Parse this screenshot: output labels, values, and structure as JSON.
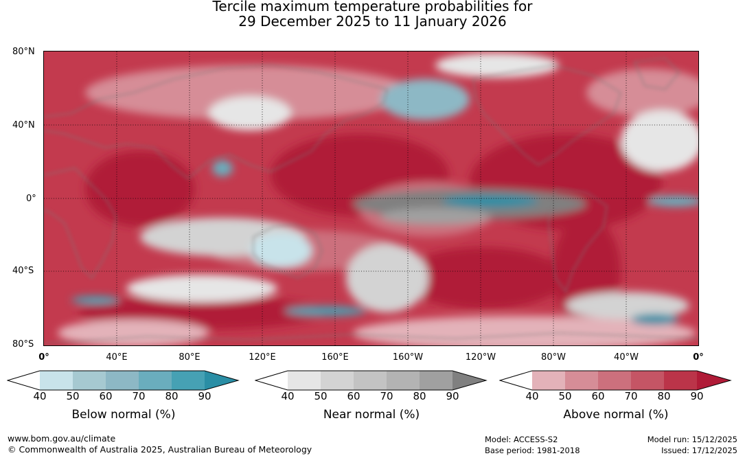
{
  "title": {
    "line1": "Tercile maximum temperature probabilities for",
    "line2": "29 December 2025 to 11 January 2026"
  },
  "map": {
    "lat_labels": [
      "80°N",
      "40°N",
      "0°",
      "40°S",
      "80°S"
    ],
    "lon_labels": [
      "0°",
      "40°E",
      "80°E",
      "120°E",
      "160°E",
      "160°W",
      "120°W",
      "80°W",
      "40°W",
      "0°"
    ],
    "lat_range": [
      -80,
      80
    ],
    "lon_range": [
      0,
      360
    ],
    "graticule_step_deg": 40
  },
  "legends": [
    {
      "name": "below",
      "title": "Below normal (%)",
      "ticks": [
        "40",
        "50",
        "60",
        "70",
        "80",
        "90"
      ],
      "colors": [
        "#ffffff",
        "#c8e3ea",
        "#a6c9d1",
        "#8db8c5",
        "#6aadbd",
        "#46a1b4",
        "#2a8ea5"
      ]
    },
    {
      "name": "near",
      "title": "Near normal (%)",
      "ticks": [
        "40",
        "50",
        "60",
        "70",
        "80",
        "90"
      ],
      "colors": [
        "#ffffff",
        "#e6e6e6",
        "#d3d3d3",
        "#c3c3c3",
        "#b3b3b3",
        "#a0a0a0",
        "#808080"
      ]
    },
    {
      "name": "above",
      "title": "Above normal (%)",
      "ticks": [
        "40",
        "50",
        "60",
        "70",
        "80",
        "90"
      ],
      "colors": [
        "#ffffff",
        "#e3b2b9",
        "#d68d97",
        "#cc707d",
        "#c55565",
        "#bb3449",
        "#b01b37"
      ]
    }
  ],
  "footer": {
    "website": "www.bom.gov.au/climate",
    "copyright": "© Commonwealth of Australia 2025, Australian Bureau of Meteorology",
    "model": "Model: ACCESS-S2",
    "base_period": "Base period: 1981-2018",
    "model_run": "Model run: 15/12/2025",
    "issued": "Issued: 17/12/2025"
  }
}
